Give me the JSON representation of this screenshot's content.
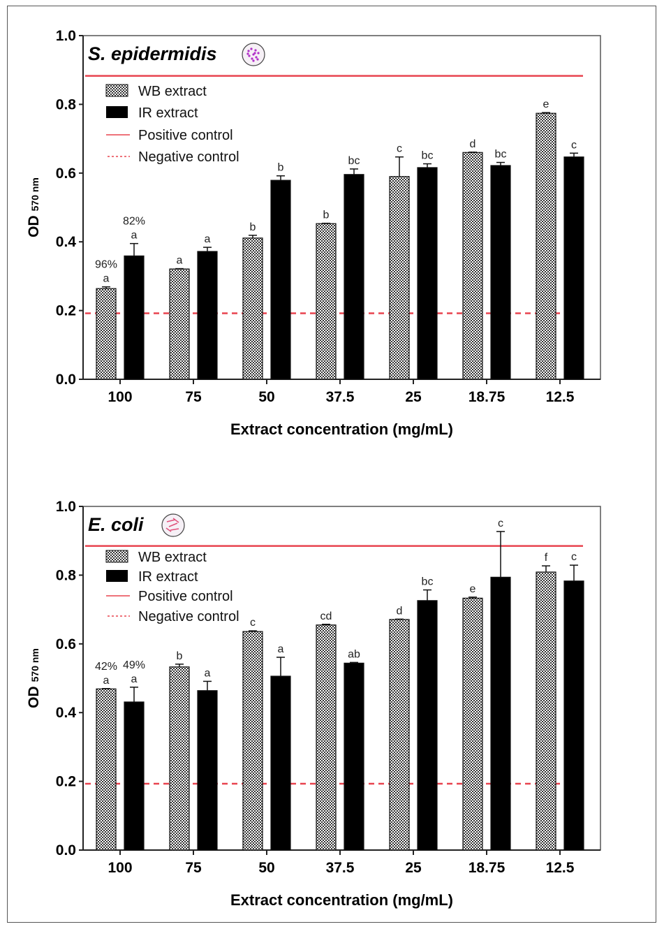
{
  "chart_data": [
    {
      "type": "bar",
      "title": "S. epidermidis",
      "title_icon": "cocci-bacteria-icon",
      "xlabel": "Extract concentration (mg/mL)",
      "ylabel_main": "OD",
      "ylabel_sub": "570 nm",
      "ylim": [
        0,
        1.0
      ],
      "yticks": [
        "0.0",
        "0.2",
        "0.4",
        "0.6",
        "0.8",
        "1.0"
      ],
      "categories": [
        "100",
        "75",
        "50",
        "37.5",
        "25",
        "18.75",
        "12.5"
      ],
      "legend": [
        "WB extract",
        "IR extract",
        "Positive control",
        "Negative control"
      ],
      "legend_placement": "top-left",
      "positive_control": 0.883,
      "negative_control": 0.192,
      "series": [
        {
          "name": "WB extract",
          "values": [
            0.264,
            0.321,
            0.411,
            0.453,
            0.59,
            0.66,
            0.774
          ],
          "errors": [
            0.005,
            0.001,
            0.008,
            0.001,
            0.057,
            0.001,
            0.002
          ],
          "letters": [
            "a",
            "a",
            "b",
            "b",
            "c",
            "d",
            "e"
          ],
          "annotations": [
            "96%",
            "",
            "",
            "",
            "",
            "",
            ""
          ]
        },
        {
          "name": "IR extract",
          "values": [
            0.359,
            0.372,
            0.579,
            0.596,
            0.616,
            0.622,
            0.647
          ],
          "errors": [
            0.036,
            0.012,
            0.013,
            0.016,
            0.011,
            0.009,
            0.011
          ],
          "letters": [
            "a",
            "a",
            "b",
            "bc",
            "bc",
            "bc",
            "c"
          ],
          "annotations": [
            "82%",
            "",
            "",
            "",
            "",
            "",
            ""
          ]
        }
      ]
    },
    {
      "type": "bar",
      "title": "E. coli",
      "title_icon": "bacilli-bacteria-icon",
      "xlabel": "Extract concentration (mg/mL)",
      "ylabel_main": "OD",
      "ylabel_sub": "570 nm",
      "ylim": [
        0,
        1.0
      ],
      "yticks": [
        "0.0",
        "0.2",
        "0.4",
        "0.6",
        "0.8",
        "1.0"
      ],
      "categories": [
        "100",
        "75",
        "50",
        "37.5",
        "25",
        "18.75",
        "12.5"
      ],
      "legend": [
        "WB extract",
        "IR extract",
        "Positive control",
        "Negative control"
      ],
      "legend_placement": "top-left",
      "positive_control": 0.885,
      "negative_control": 0.193,
      "series": [
        {
          "name": "WB extract",
          "values": [
            0.469,
            0.533,
            0.636,
            0.655,
            0.671,
            0.733,
            0.809
          ],
          "errors": [
            0.001,
            0.008,
            0.002,
            0.002,
            0.001,
            0.003,
            0.018
          ],
          "letters": [
            "a",
            "b",
            "c",
            "cd",
            "d",
            "e",
            "f"
          ],
          "annotations": [
            "42%",
            "",
            "",
            "",
            "",
            "",
            ""
          ]
        },
        {
          "name": "IR extract",
          "values": [
            0.431,
            0.464,
            0.506,
            0.544,
            0.726,
            0.794,
            0.783
          ],
          "errors": [
            0.043,
            0.027,
            0.055,
            0.002,
            0.031,
            0.133,
            0.046
          ],
          "letters": [
            "a",
            "a",
            "a",
            "ab",
            "bc",
            "c",
            "c"
          ],
          "annotations": [
            "49%",
            "",
            "",
            "",
            "",
            "",
            ""
          ]
        }
      ]
    }
  ],
  "colors": {
    "control": "#e8434f",
    "ir": "#000000",
    "axis": "#222222"
  }
}
